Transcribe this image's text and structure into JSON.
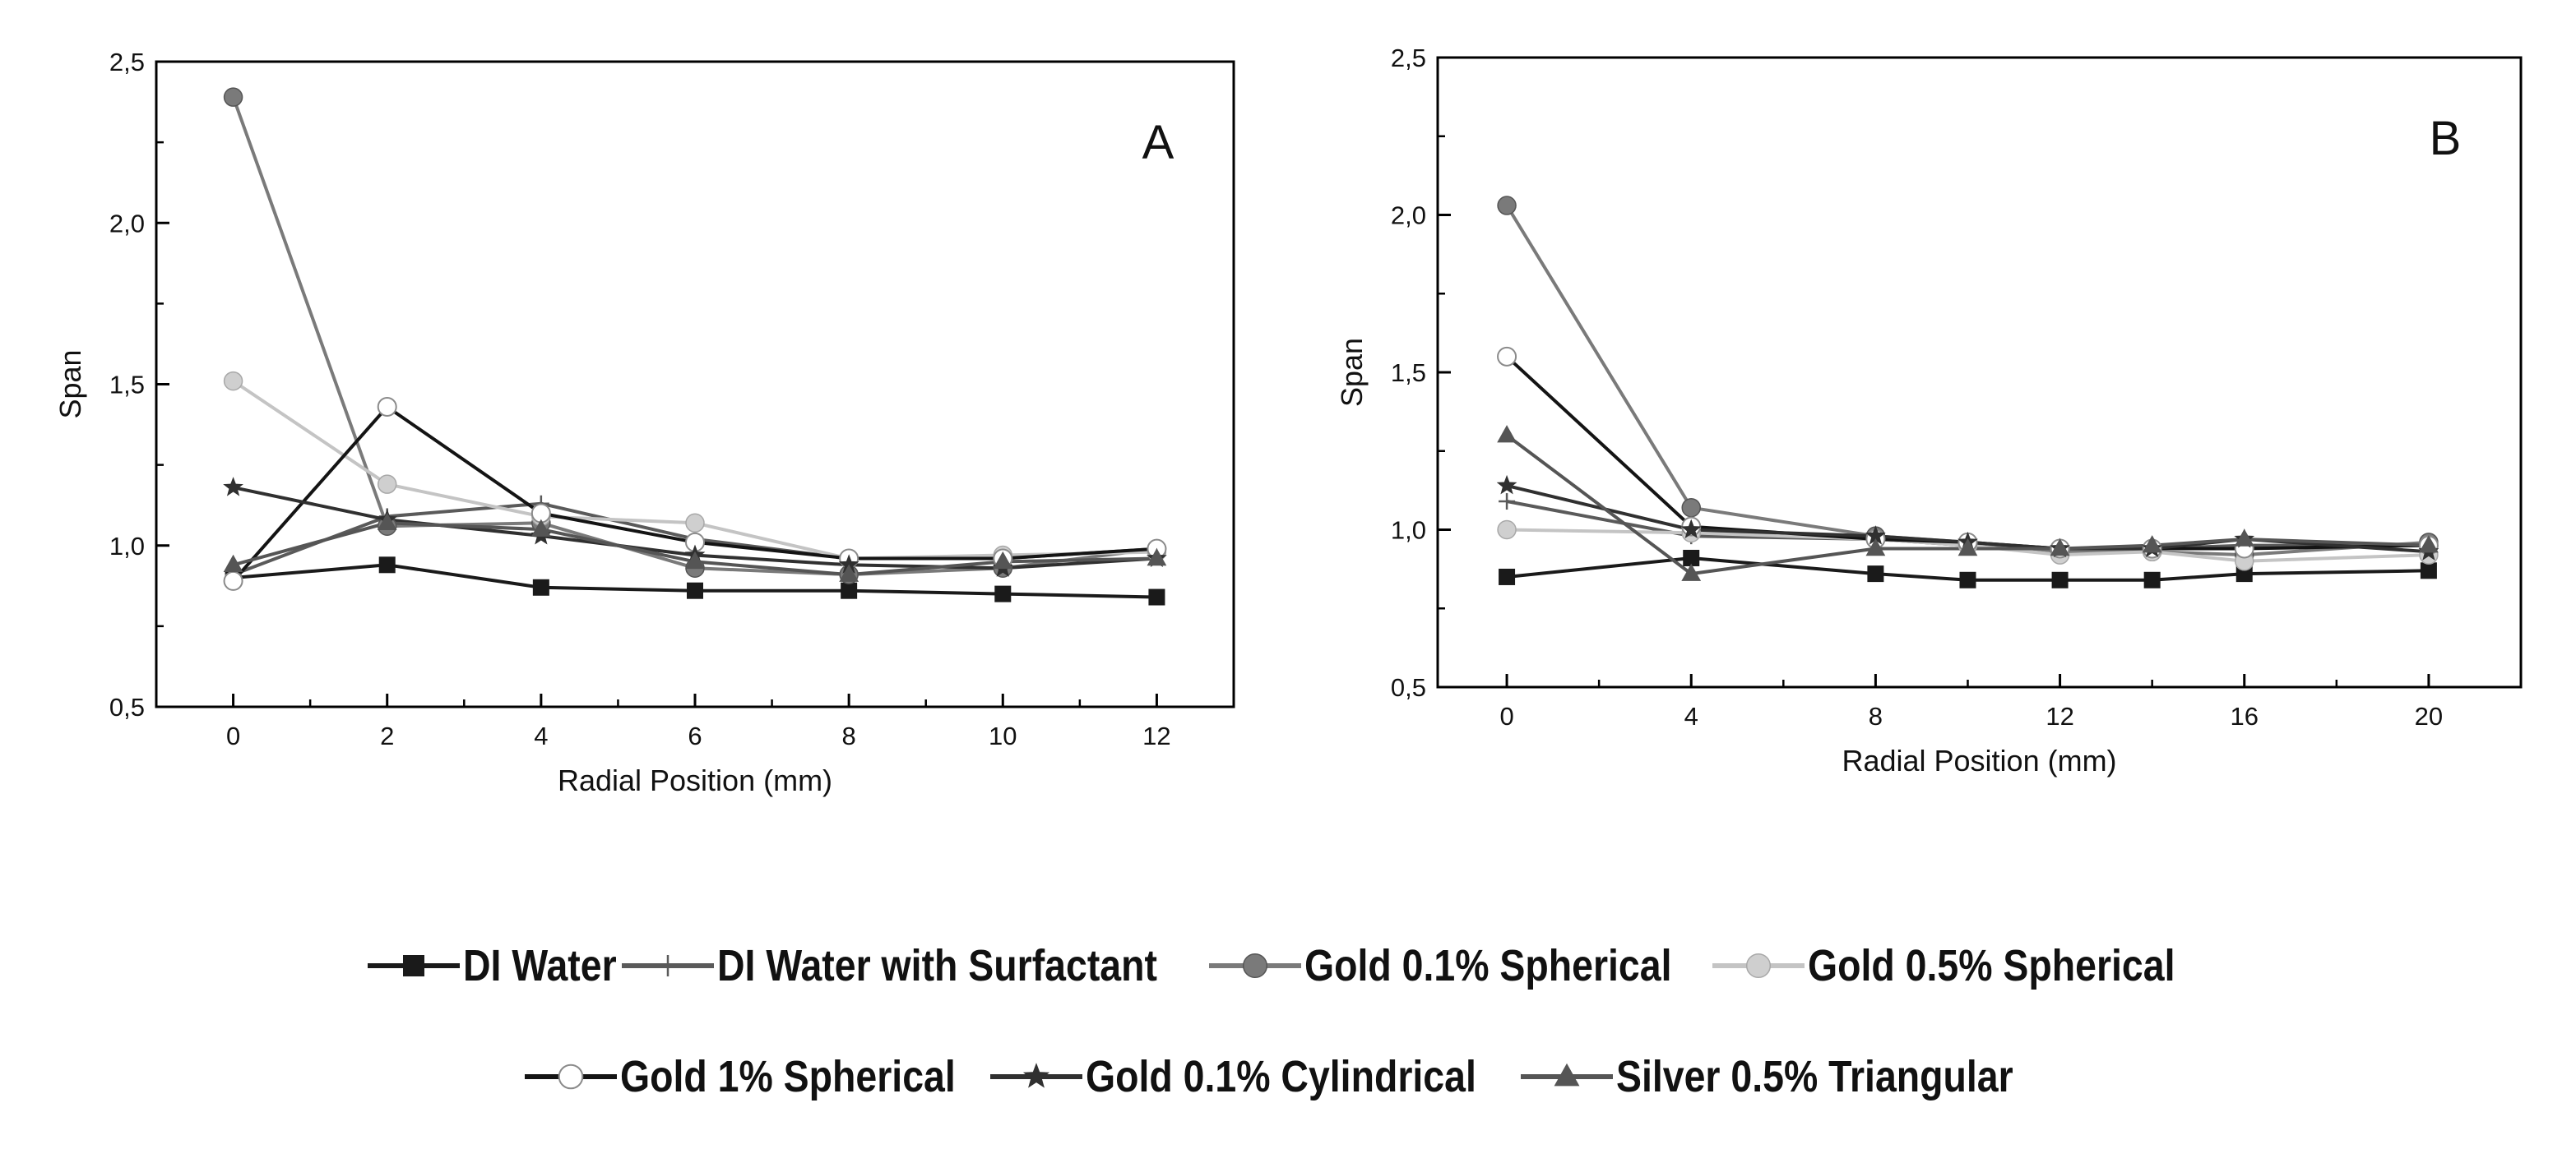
{
  "chart_data": [
    {
      "type": "line",
      "panel_label": "A",
      "xlabel": "Radial Position (mm)",
      "ylabel": "Span",
      "xlim": [
        -1,
        13
      ],
      "ylim": [
        0.5,
        2.5
      ],
      "x_ticks": [
        0,
        2,
        4,
        6,
        8,
        10,
        12
      ],
      "x_tick_labels": [
        "0",
        "2",
        "4",
        "6",
        "8",
        "10",
        "12"
      ],
      "y_ticks": [
        0.5,
        1.0,
        1.5,
        2.0,
        2.5
      ],
      "y_tick_labels": [
        "0,5",
        "1,0",
        "1,5",
        "2,0",
        "2,5"
      ],
      "x": [
        0,
        2,
        4,
        6,
        8,
        10,
        12
      ],
      "series": [
        {
          "name": "DI Water",
          "values": [
            0.9,
            0.94,
            0.87,
            0.86,
            0.86,
            0.85,
            0.84
          ]
        },
        {
          "name": "DI Water with Surfactant",
          "values": [
            0.91,
            1.09,
            1.13,
            1.02,
            0.96,
            0.96,
            0.99
          ]
        },
        {
          "name": "Gold 0.1% Spherical",
          "values": [
            2.39,
            1.06,
            1.07,
            0.93,
            0.91,
            0.93,
            0.99
          ]
        },
        {
          "name": "Gold 0.5% Spherical",
          "values": [
            1.51,
            1.19,
            1.09,
            1.07,
            0.96,
            0.97,
            0.98
          ]
        },
        {
          "name": "Gold 1% Spherical",
          "values": [
            0.89,
            1.43,
            1.1,
            1.01,
            0.96,
            0.96,
            0.99
          ]
        },
        {
          "name": "Gold 0.1% Cylindrical",
          "values": [
            1.18,
            1.08,
            1.03,
            0.97,
            0.94,
            0.93,
            0.96
          ]
        },
        {
          "name": "Silver 0.5% Triangular",
          "values": [
            0.94,
            1.07,
            1.05,
            0.95,
            0.91,
            0.95,
            0.96
          ]
        }
      ]
    },
    {
      "type": "line",
      "panel_label": "B",
      "xlabel": "Radial Position (mm)",
      "ylabel": "Span",
      "xlim": [
        -1.5,
        22
      ],
      "ylim": [
        0.5,
        2.5
      ],
      "x_ticks": [
        0,
        4,
        8,
        12,
        16,
        20
      ],
      "x_tick_labels": [
        "0",
        "4",
        "8",
        "12",
        "16",
        "20"
      ],
      "y_ticks": [
        0.5,
        1.0,
        1.5,
        2.0,
        2.5
      ],
      "y_tick_labels": [
        "0,5",
        "1,0",
        "1,5",
        "2,0",
        "2,5"
      ],
      "x": [
        0,
        4,
        8,
        10,
        12,
        14,
        16,
        20
      ],
      "series": [
        {
          "name": "DI Water",
          "values": [
            0.85,
            0.91,
            0.86,
            0.84,
            0.84,
            0.84,
            0.86,
            0.87
          ]
        },
        {
          "name": "DI Water with Surfactant",
          "values": [
            1.09,
            0.98,
            0.97,
            0.95,
            0.94,
            0.94,
            0.95,
            0.95
          ]
        },
        {
          "name": "Gold 0.1% Spherical",
          "values": [
            2.03,
            1.07,
            0.98,
            0.96,
            0.93,
            0.93,
            0.92,
            0.96
          ]
        },
        {
          "name": "Gold 0.5% Spherical",
          "values": [
            1.0,
            0.99,
            0.97,
            0.95,
            0.92,
            0.93,
            0.9,
            0.92
          ]
        },
        {
          "name": "Gold 1% Spherical",
          "values": [
            1.55,
            1.01,
            0.97,
            0.96,
            0.94,
            0.94,
            0.94,
            0.95
          ]
        },
        {
          "name": "Gold 0.1% Cylindrical",
          "values": [
            1.14,
            1.0,
            0.98,
            0.96,
            0.94,
            0.94,
            0.97,
            0.93
          ]
        },
        {
          "name": "Silver 0.5% Triangular",
          "values": [
            1.3,
            0.86,
            0.94,
            0.94,
            0.94,
            0.95,
            0.97,
            0.95
          ]
        }
      ]
    }
  ],
  "legend": {
    "placement": "bottom",
    "items": [
      {
        "name": "DI Water",
        "color": "#1a1a1a",
        "marker": "square"
      },
      {
        "name": "DI Water with Surfactant",
        "color": "#5a5a5a",
        "marker": "cross"
      },
      {
        "name": "Gold 0.1% Spherical",
        "color": "#7a7a7a",
        "marker": "circle-filled"
      },
      {
        "name": "Gold 0.5% Spherical",
        "color": "#c4c4c4",
        "marker": "circle-light"
      },
      {
        "name": "Gold 1% Spherical",
        "color": "#141414",
        "marker": "circle-open"
      },
      {
        "name": "Gold 0.1% Cylindrical",
        "color": "#303030",
        "marker": "star"
      },
      {
        "name": "Silver 0.5% Triangular",
        "color": "#555555",
        "marker": "triangle"
      }
    ]
  }
}
